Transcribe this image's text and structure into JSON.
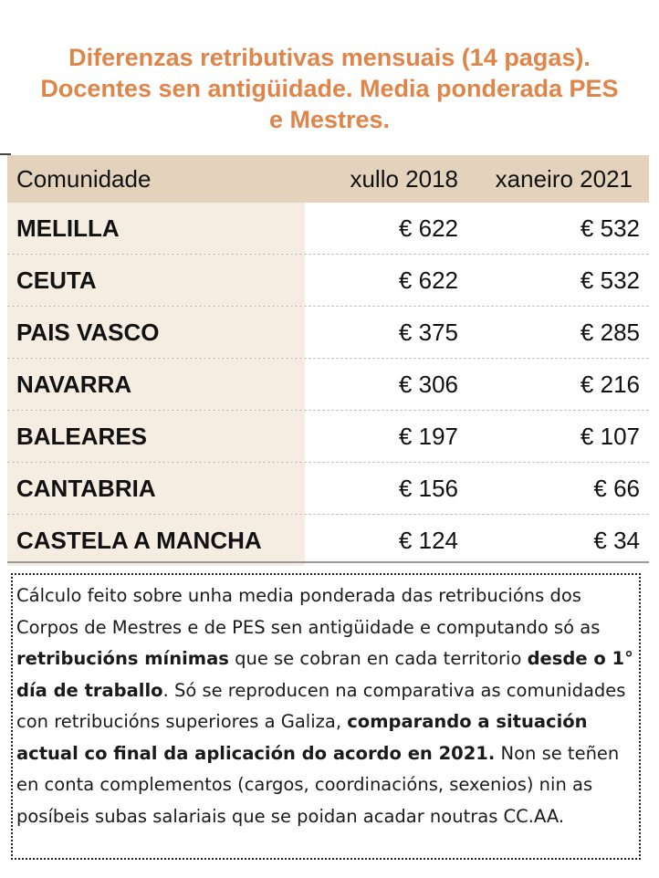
{
  "title": {
    "line1": "Diferenzas retributivas mensuais (14 pagas).",
    "line2": "Docentes sen antigüidade. Media ponderada PES",
    "line3": "e Mestres."
  },
  "table": {
    "headers": [
      "Comunidade",
      "xullo 2018",
      "xaneiro 2021"
    ],
    "rows": [
      {
        "name": "MELILLA",
        "v2018": "€ 622",
        "v2021": "€ 532"
      },
      {
        "name": "CEUTA",
        "v2018": "€ 622",
        "v2021": "€ 532"
      },
      {
        "name": "PAIS VASCO",
        "v2018": "€ 375",
        "v2021": "€ 285"
      },
      {
        "name": "NAVARRA",
        "v2018": "€ 306",
        "v2021": "€ 216"
      },
      {
        "name": "BALEARES",
        "v2018": "€ 197",
        "v2021": "€ 107"
      },
      {
        "name": "CANTABRIA",
        "v2018": "€ 156",
        "v2021": "€ 66"
      },
      {
        "name": "CASTELA A MANCHA",
        "v2018": "€ 124",
        "v2021": "€ 34"
      }
    ]
  },
  "note": {
    "p1": "Cálculo feito sobre unha media ponderada das retribucións dos Corpos de Mestres e de PES sen antigüidade e computando só as ",
    "b1": "retribucións mínimas",
    "p2": " que se cobran en cada territorio ",
    "b2": "desde o 1° día de traballo",
    "p3": ". Só se reproducen na comparativa as comunidades con retribucións superiores a Galiza, ",
    "b3": "comparando a situación actual co final da aplicación do acordo en 2021.",
    "p4": " Non se teñen en conta complementos (cargos, coordinacións, sexenios) nin as posíbeis subas salariais que se poidan acadar noutras CC.AA."
  },
  "colors": {
    "title": "#e0854a",
    "header_bg": "#e3d3bc",
    "first_col_bg": "#f5ede1"
  }
}
